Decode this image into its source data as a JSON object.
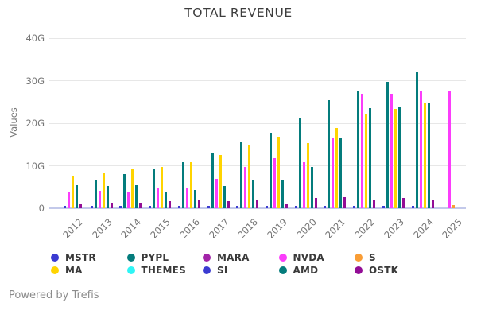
{
  "title": "TOTAL REVENUE",
  "footer": {
    "text": "Powered by Trefis"
  },
  "chart_data": {
    "type": "bar",
    "title": "TOTAL REVENUE",
    "xlabel": "",
    "ylabel": "Values",
    "unit": "G",
    "ylim": [
      0,
      40
    ],
    "yticks": [
      0,
      10,
      20,
      30,
      40
    ],
    "ytick_labels": [
      "0",
      "10G",
      "20G",
      "30G",
      "40G"
    ],
    "grid": "horizontal",
    "legend_position": "bottom",
    "categories": [
      "2012",
      "2013",
      "2014",
      "2015",
      "2016",
      "2017",
      "2018",
      "2019",
      "2020",
      "2021",
      "2022",
      "2023",
      "2024",
      "2025"
    ],
    "series": [
      {
        "name": "MSTR",
        "color": "#3b3bd1",
        "values": [
          0.5,
          0.6,
          0.6,
          0.5,
          0.5,
          0.5,
          0.5,
          0.5,
          0.5,
          0.5,
          0.5,
          0.5,
          0.5,
          null
        ]
      },
      {
        "name": "PYPL",
        "color": "#047c7c",
        "values": [
          null,
          6.6,
          8.0,
          9.2,
          10.8,
          13.1,
          15.5,
          17.7,
          21.4,
          25.4,
          27.5,
          29.8,
          31.9,
          null
        ]
      },
      {
        "name": "MARA",
        "color": "#a224a8",
        "values": [
          null,
          null,
          null,
          null,
          null,
          null,
          null,
          null,
          null,
          null,
          null,
          null,
          null,
          null
        ]
      },
      {
        "name": "NVDA",
        "color": "#fb3dfb",
        "values": [
          4.0,
          4.1,
          4.0,
          4.7,
          4.8,
          6.9,
          9.7,
          11.7,
          10.9,
          16.6,
          26.9,
          27.0,
          27.4,
          27.6
        ]
      },
      {
        "name": "S",
        "color": "#f99d36",
        "values": [
          null,
          null,
          null,
          null,
          null,
          null,
          null,
          null,
          null,
          null,
          null,
          null,
          null,
          0.7
        ]
      },
      {
        "name": "MA",
        "color": "#ffd400",
        "values": [
          7.4,
          8.3,
          9.4,
          9.7,
          10.8,
          12.5,
          15.0,
          16.8,
          15.3,
          18.9,
          22.2,
          23.4,
          24.9,
          null
        ]
      },
      {
        "name": "THEMES",
        "color": "#2ff5f5",
        "values": [
          null,
          null,
          null,
          null,
          null,
          null,
          null,
          null,
          null,
          null,
          null,
          null,
          null,
          null
        ]
      },
      {
        "name": "SI",
        "color": "#3b3bd1",
        "values": [
          null,
          null,
          null,
          null,
          null,
          null,
          null,
          null,
          null,
          null,
          null,
          null,
          null,
          null
        ]
      },
      {
        "name": "AMD",
        "color": "#047c7c",
        "values": [
          5.4,
          5.3,
          5.5,
          4.0,
          4.3,
          5.3,
          6.5,
          6.7,
          9.7,
          16.4,
          23.6,
          24.0,
          24.6,
          null
        ]
      },
      {
        "name": "OSTK",
        "color": "#930d96",
        "values": [
          1.0,
          1.3,
          1.4,
          1.7,
          1.8,
          1.7,
          1.8,
          1.2,
          2.5,
          2.7,
          1.9,
          2.4,
          1.8,
          null
        ]
      }
    ]
  }
}
